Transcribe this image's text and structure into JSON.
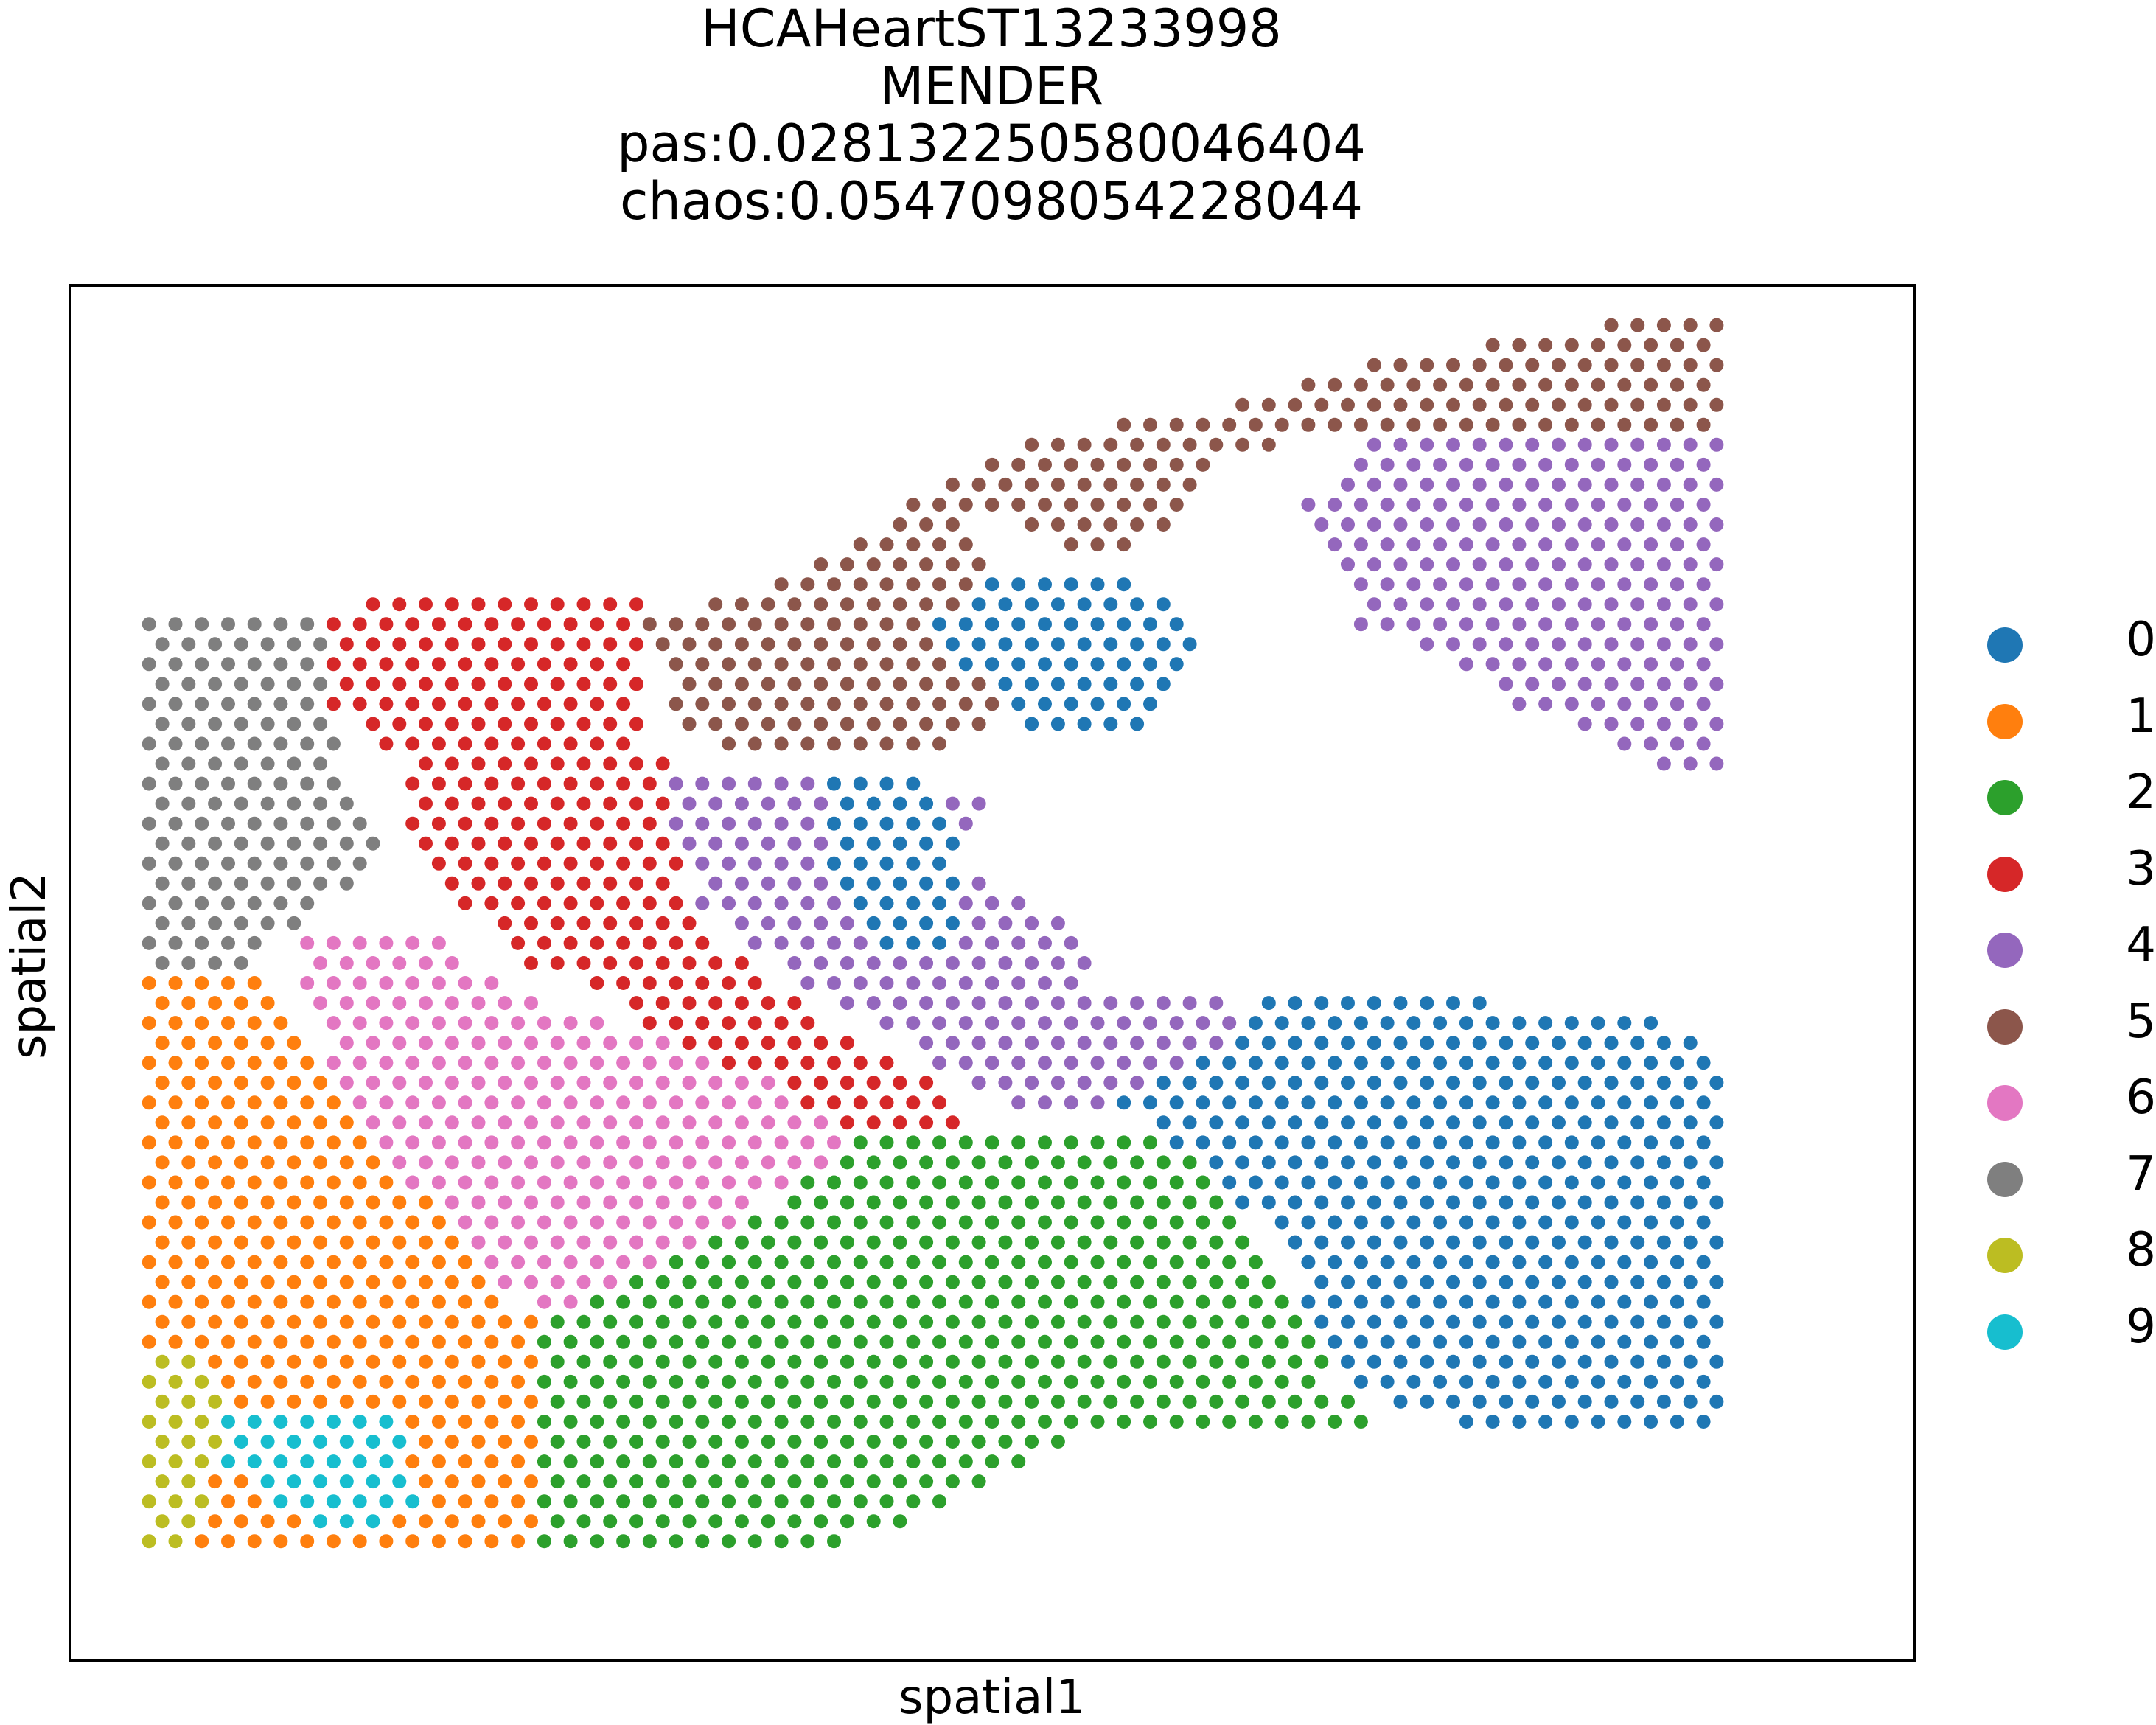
{
  "chart_data": {
    "type": "scatter",
    "title": [
      "HCAHeartST13233998",
      "MENDER",
      "pas:0.028132250580046404",
      "chaos:0.0547098054228044"
    ],
    "xlabel": "spatial1",
    "ylabel": "spatial2",
    "legend_placement": "right",
    "grid": false,
    "xlim": [
      -3,
      67
    ],
    "ylim": [
      -68,
      1
    ],
    "categories": [
      "0",
      "1",
      "2",
      "3",
      "4",
      "5",
      "6",
      "7",
      "8",
      "9"
    ],
    "colors": [
      "#1f77b4",
      "#ff7f0e",
      "#2ca02c",
      "#d62728",
      "#9467bd",
      "#8c564b",
      "#e377c2",
      "#7f7f7f",
      "#bcbd22",
      "#17becf"
    ],
    "regions_note": "spots on a hex grid; x col 0-60, y row 0 (top) to -62 (bottom)",
    "regions": [
      {
        "cluster": "5",
        "polygon": [
          [
            60,
            0
          ],
          [
            60,
            -12
          ],
          [
            46,
            -6
          ],
          [
            41,
            -8
          ],
          [
            37,
            -13
          ],
          [
            31,
            -10
          ],
          [
            33,
            -20
          ],
          [
            30,
            -23
          ],
          [
            28,
            -22
          ],
          [
            23,
            -23
          ],
          [
            20,
            -21
          ],
          [
            19,
            -16
          ],
          [
            24,
            -14
          ],
          [
            29,
            -10
          ],
          [
            33,
            -7
          ],
          [
            41,
            -5
          ],
          [
            46,
            -3
          ]
        ]
      },
      {
        "cluster": "4",
        "polygon": [
          [
            54,
            -6
          ],
          [
            60,
            -6
          ],
          [
            60,
            -23
          ],
          [
            57,
            -23
          ],
          [
            52,
            -20
          ],
          [
            50,
            -18
          ],
          [
            46,
            -16
          ],
          [
            44,
            -10
          ],
          [
            46,
            -7
          ],
          [
            49,
            -6
          ]
        ]
      },
      {
        "cluster": "0",
        "polygon": [
          [
            33,
            -13
          ],
          [
            37,
            -13
          ],
          [
            40,
            -16
          ],
          [
            38,
            -21
          ],
          [
            33,
            -21
          ],
          [
            31,
            -18
          ],
          [
            30,
            -16
          ]
        ]
      },
      {
        "cluster": "7",
        "polygon": [
          [
            0,
            -15
          ],
          [
            8,
            -15
          ],
          [
            7,
            -23
          ],
          [
            9,
            -28
          ],
          [
            6,
            -31
          ],
          [
            4,
            -33
          ],
          [
            0,
            -33
          ]
        ]
      },
      {
        "cluster": "3",
        "polygon": [
          [
            9,
            -14
          ],
          [
            19,
            -14
          ],
          [
            19,
            -22
          ],
          [
            22,
            -24
          ],
          [
            20,
            -27
          ],
          [
            21,
            -31
          ],
          [
            24,
            -34
          ],
          [
            27,
            -37
          ],
          [
            31,
            -40
          ],
          [
            32,
            -42
          ],
          [
            29,
            -42
          ],
          [
            24,
            -40
          ],
          [
            20,
            -38
          ],
          [
            17,
            -34
          ],
          [
            14,
            -33
          ],
          [
            12,
            -30
          ],
          [
            10,
            -27
          ],
          [
            10,
            -23
          ],
          [
            7,
            -20
          ],
          [
            7,
            -16
          ]
        ]
      },
      {
        "cluster": "4",
        "polygon": [
          [
            20,
            -23
          ],
          [
            28,
            -23
          ],
          [
            32,
            -25
          ],
          [
            31,
            -28
          ],
          [
            35,
            -31
          ],
          [
            36,
            -34
          ],
          [
            41,
            -35
          ],
          [
            42,
            -38
          ],
          [
            38,
            -40
          ],
          [
            35,
            -41
          ],
          [
            33,
            -40
          ],
          [
            30,
            -38
          ],
          [
            26,
            -35
          ],
          [
            24,
            -33
          ],
          [
            21,
            -30
          ],
          [
            20,
            -26
          ]
        ]
      },
      {
        "cluster": "0",
        "polygon": [
          [
            26,
            -23
          ],
          [
            29,
            -23
          ],
          [
            31,
            -27
          ],
          [
            31,
            -32
          ],
          [
            28,
            -33
          ],
          [
            26,
            -28
          ]
        ]
      },
      {
        "cluster": "0",
        "polygon": [
          [
            42,
            -35
          ],
          [
            49,
            -34
          ],
          [
            54,
            -36
          ],
          [
            57,
            -35
          ],
          [
            60,
            -38
          ],
          [
            60,
            -56
          ],
          [
            53,
            -57
          ],
          [
            47,
            -55
          ],
          [
            45,
            -53
          ],
          [
            43,
            -47
          ],
          [
            40,
            -43
          ],
          [
            37,
            -40
          ],
          [
            40,
            -38
          ]
        ]
      },
      {
        "cluster": "6",
        "polygon": [
          [
            5,
            -31
          ],
          [
            10,
            -31
          ],
          [
            15,
            -35
          ],
          [
            20,
            -37
          ],
          [
            24,
            -39
          ],
          [
            27,
            -42
          ],
          [
            21,
            -47
          ],
          [
            18,
            -49
          ],
          [
            17,
            -51
          ],
          [
            13,
            -49
          ],
          [
            10,
            -44
          ],
          [
            7,
            -38
          ]
        ]
      },
      {
        "cluster": "1",
        "polygon": [
          [
            0,
            -33
          ],
          [
            4,
            -33
          ],
          [
            7,
            -38
          ],
          [
            10,
            -44
          ],
          [
            13,
            -49
          ],
          [
            15,
            -51
          ],
          [
            15,
            -62
          ],
          [
            2,
            -62
          ],
          [
            2,
            -53
          ],
          [
            0,
            -52
          ]
        ]
      },
      {
        "cluster": "2",
        "polygon": [
          [
            27,
            -42
          ],
          [
            34,
            -41
          ],
          [
            37,
            -41
          ],
          [
            40,
            -43
          ],
          [
            43,
            -48
          ],
          [
            45,
            -54
          ],
          [
            47,
            -56
          ],
          [
            40,
            -56
          ],
          [
            35,
            -57
          ],
          [
            27,
            -62
          ],
          [
            15,
            -62
          ],
          [
            15,
            -51
          ],
          [
            20,
            -48
          ],
          [
            24,
            -45
          ]
        ]
      },
      {
        "cluster": "8",
        "polygon": [
          [
            0,
            -52
          ],
          [
            2,
            -52
          ],
          [
            3,
            -56
          ],
          [
            2,
            -62
          ],
          [
            0,
            -62
          ]
        ]
      },
      {
        "cluster": "9",
        "polygon": [
          [
            3,
            -55
          ],
          [
            9,
            -55
          ],
          [
            10,
            -58
          ],
          [
            11,
            -60
          ],
          [
            8,
            -62
          ],
          [
            6,
            -61
          ],
          [
            3,
            -58
          ]
        ]
      }
    ]
  }
}
